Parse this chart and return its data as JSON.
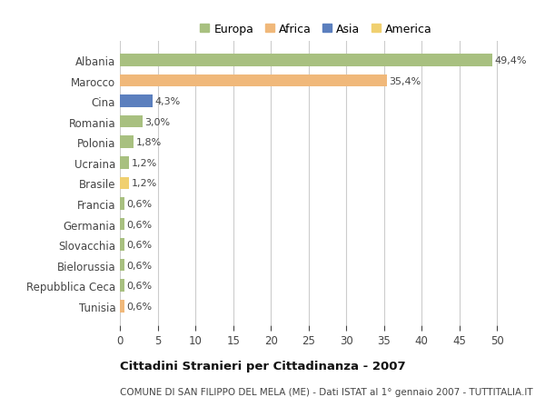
{
  "categories": [
    "Albania",
    "Marocco",
    "Cina",
    "Romania",
    "Polonia",
    "Ucraina",
    "Brasile",
    "Francia",
    "Germania",
    "Slovacchia",
    "Bielorussia",
    "Repubblica Ceca",
    "Tunisia"
  ],
  "values": [
    49.4,
    35.4,
    4.3,
    3.0,
    1.8,
    1.2,
    1.2,
    0.6,
    0.6,
    0.6,
    0.6,
    0.6,
    0.6
  ],
  "labels": [
    "49,4%",
    "35,4%",
    "4,3%",
    "3,0%",
    "1,8%",
    "1,2%",
    "1,2%",
    "0,6%",
    "0,6%",
    "0,6%",
    "0,6%",
    "0,6%",
    "0,6%"
  ],
  "colors": [
    "#a8c080",
    "#f0b87a",
    "#5b7fbe",
    "#a8c080",
    "#a8c080",
    "#a8c080",
    "#f0d070",
    "#a8c080",
    "#a8c080",
    "#a8c080",
    "#a8c080",
    "#a8c080",
    "#f0b87a"
  ],
  "legend_labels": [
    "Europa",
    "Africa",
    "Asia",
    "America"
  ],
  "legend_colors": [
    "#a8c080",
    "#f0b87a",
    "#5b7fbe",
    "#f0d070"
  ],
  "title": "Cittadini Stranieri per Cittadinanza - 2007",
  "subtitle": "COMUNE DI SAN FILIPPO DEL MELA (ME) - Dati ISTAT al 1° gennaio 2007 - TUTTITALIA.IT",
  "xlim": [
    0,
    52
  ],
  "xticks": [
    0,
    5,
    10,
    15,
    20,
    25,
    30,
    35,
    40,
    45,
    50
  ],
  "background_color": "#ffffff",
  "grid_color": "#cccccc"
}
